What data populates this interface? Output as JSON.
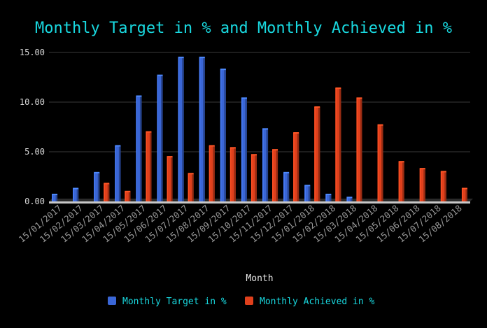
{
  "chart_data": {
    "type": "bar",
    "title": "Monthly Target in % and Monthly Achieved in %",
    "xlabel": "Month",
    "ylabel": "",
    "ylim": [
      0,
      15
    ],
    "yticks": [
      "0.00",
      "5.00",
      "10.00",
      "15.00"
    ],
    "grid": true,
    "legend_position": "bottom",
    "categories": [
      "15/01/2017",
      "15/02/2017",
      "15/03/2017",
      "15/04/2017",
      "15/05/2017",
      "15/06/2017",
      "15/07/2017",
      "15/08/2017",
      "15/09/2017",
      "15/10/2017",
      "15/11/2017",
      "15/12/2017",
      "15/01/2018",
      "15/02/2018",
      "15/03/2018",
      "15/04/2018",
      "15/05/2018",
      "15/06/2018",
      "15/07/2018",
      "15/08/2018"
    ],
    "series": [
      {
        "name": "Monthly Target in %",
        "color": "#3a66d6",
        "values": [
          0.7,
          1.3,
          2.9,
          5.6,
          10.6,
          12.7,
          14.5,
          14.5,
          13.3,
          10.4,
          7.3,
          2.9,
          1.6,
          0.7,
          0.4,
          0,
          0,
          0,
          0,
          0
        ]
      },
      {
        "name": "Monthly Achieved in %",
        "color": "#e0401c",
        "values": [
          0,
          0,
          1.8,
          1.0,
          7.0,
          4.5,
          2.8,
          5.6,
          5.4,
          4.7,
          5.2,
          6.9,
          9.5,
          11.4,
          10.4,
          7.7,
          4.0,
          3.3,
          3.0,
          1.3
        ]
      }
    ]
  }
}
